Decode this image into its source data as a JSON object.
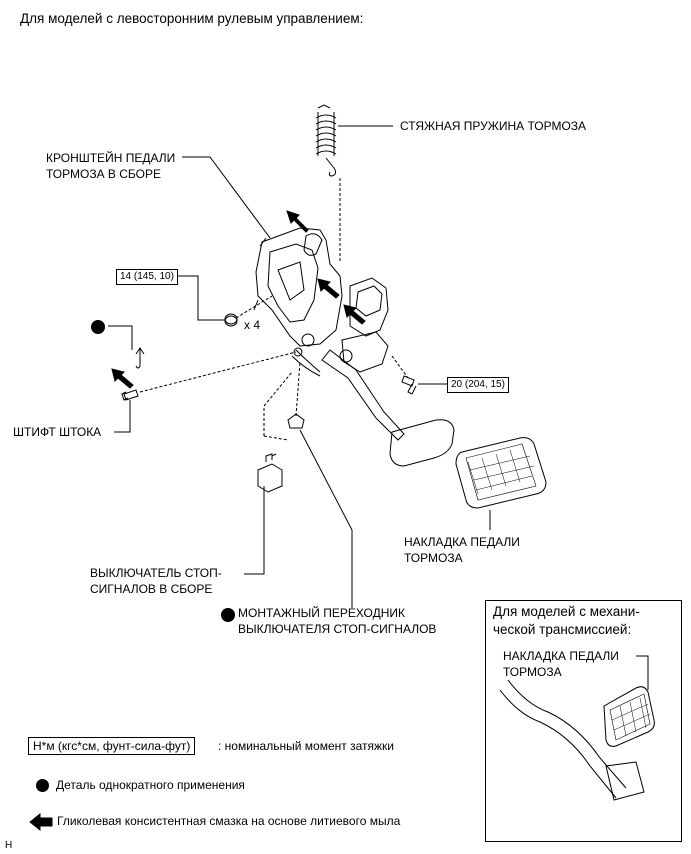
{
  "header": "Для моделей с левосторонним рулевым управлением:",
  "labels": {
    "spring_line1": "СТЯЖНАЯ ПРУЖИНА ТОРМОЗА",
    "bracket_line1": "КРОНШТЕЙН ПЕДАЛИ",
    "bracket_line2": "ТОРМОЗА В СБОРЕ",
    "pin": "ШТИФТ ШТОКА",
    "switch_line1": "ВЫКЛЮЧАТЕЛЬ СТОП-",
    "switch_line2": "СИГНАЛОВ В СБОРЕ",
    "adapter_line1": "МОНТАЖНЫЙ ПЕРЕХОДНИК",
    "adapter_line2": "ВЫКЛЮЧАТЕЛЯ СТОП-СИГНАЛОВ",
    "pad_line1": "НАКЛАДКА ПЕДАЛИ",
    "pad_line2": "ТОРМОЗА",
    "count": "x 4"
  },
  "torques": {
    "nuts": "14 (145, 10)",
    "bolt": "20 (204, 15)"
  },
  "inset": {
    "title_line1": "Для моделей с механи-",
    "title_line2": "ческой трансмиссией:",
    "pad_line1": "НАКЛАДКА ПЕДАЛИ",
    "pad_line2": "ТОРМОЗА"
  },
  "legend": {
    "torque_box": "Н*м (кгс*см, фунт-сила-фут)",
    "torque_desc": ": номинальный момент затяжки",
    "single_use": "Деталь однократного применения",
    "grease": "Гликолевая консистентная смазка на основе литиевого мыла"
  },
  "footer_code": "H"
}
